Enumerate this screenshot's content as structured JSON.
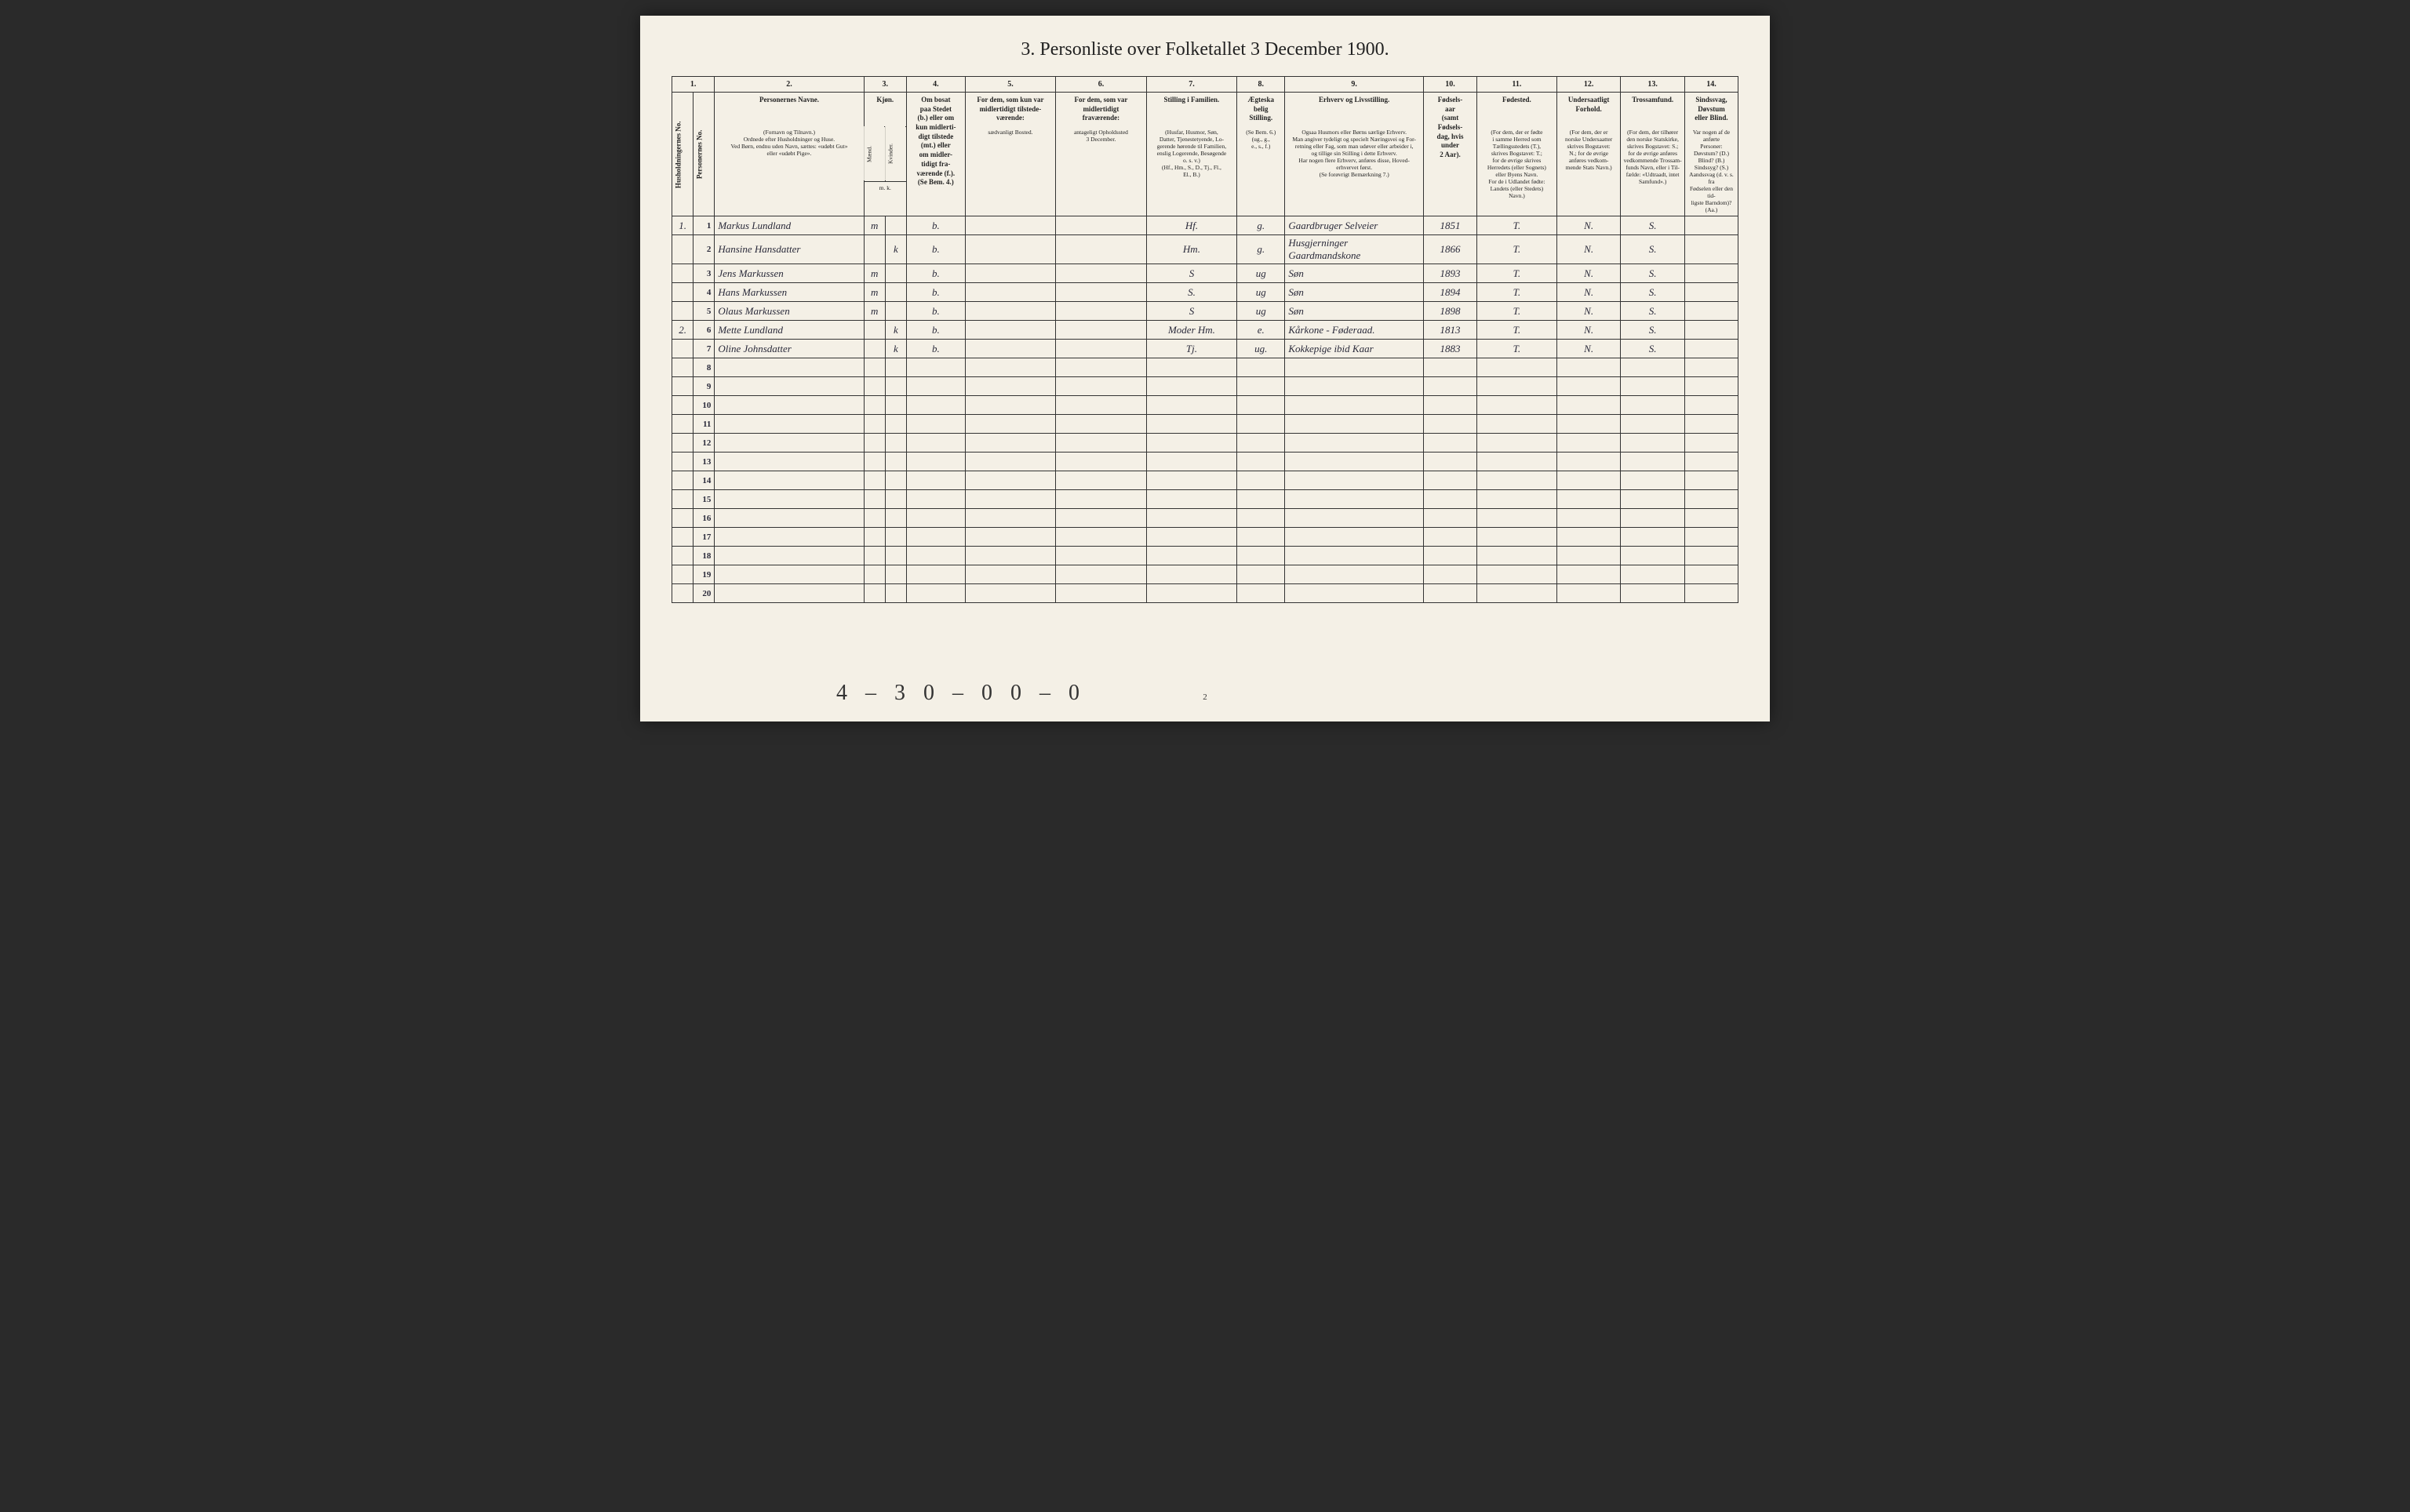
{
  "title": "3. Personliste over Folketallet 3 December 1900.",
  "column_numbers": [
    "1.",
    "2.",
    "3.",
    "4.",
    "5.",
    "6.",
    "7.",
    "8.",
    "9.",
    "10.",
    "11.",
    "12.",
    "13.",
    "14."
  ],
  "column_widths_pct": [
    2,
    2,
    14,
    2,
    2,
    5.5,
    8.5,
    8.5,
    8.5,
    4.5,
    13,
    5,
    7.5,
    6,
    6,
    5
  ],
  "headers": {
    "col1_rot": "Husholdningernes No.",
    "col1b_rot": "Personernes No.",
    "col2_main": "Personernes Navne.",
    "col2_sub": "(Fornavn og Tilnavn.)\nOrdnede efter Husholdninger og Huse.\nVed Børn, endnu uden Navn, sættes: «udøbt Gut»\neller «udøbt Pige».",
    "col3_main": "Kjøn.",
    "col3_sub_m": "Mænd.",
    "col3_sub_k": "Kvinder.",
    "col3_foot": "m.  k.",
    "col4_main": "Om bosat\npaa Stedet\n(b.) eller om\nkun midlerti-\ndigt tilstede\n(mt.) eller\nom midler-\ntidigt fra-\nværende (f.).\n(Se Bem. 4.)",
    "col5_main": "For dem, som kun var\nmidlertidigt tilstede-\nværende:",
    "col5_sub": "sædvanligt Bosted.",
    "col6_main": "For dem, som var\nmidlertidigt\nfraværende:",
    "col6_sub": "antageligt Opholdssted\n3 December.",
    "col7_main": "Stilling i Familien.",
    "col7_sub": "(Husfar, Husmor, Søn,\nDatter, Tjenestetyende, Lo-\ngerende hørende til Familien,\nenslig Logerende, Besøgende\no. s. v.)\n(Hf., Hm., S., D., Tj., Fl.,\nEl., B.)",
    "col8_main": "Ægteska\nbelig\nStilling.",
    "col8_sub": "(Se Bem. 6.)\n(ug., g.,\ne., s., f.)",
    "col9_main": "Erhverv og Livsstilling.",
    "col9_sub": "Ogsaa Husmors eller Børns særlige Erhverv.\nMan angiver tydeligt og specielt Næringsvei og For-\nretning eller Fag, som man udøver eller arbeider i,\nog tillige sin Stilling i dette Erhverv.\nHar nogen flere Erhverv, anføres disse, Hoved-\nerhvervet først.\n(Se forøvrigt Bemærkning 7.)",
    "col10_main": "Fødsels-\naar\n(samt\nFødsels-\ndag, hvis\nunder\n2 Aar).",
    "col11_main": "Fødested.",
    "col11_sub": "(For dem, der er fødte\ni samme Herred som\nTællingsstedets (T.),\nskrives Bogstavet: T.;\nfor de øvrige skrives\nHerredets (eller Sognets)\neller Byens Navn.\nFor de i Udlandet fødte:\nLandets (eller Stedets)\nNavn.)",
    "col12_main": "Undersaatligt\nForhold.",
    "col12_sub": "(For dem, der er\nnorske Undersaatter\nskrives Bogstavet:\nN.; for de øvrige\nanføres vedkom-\nmende Stats Navn.)",
    "col13_main": "Trossamfund.",
    "col13_sub": "(For dem, der tilhører\nden norske Statskirke,\nskrives Bogstavet: S.;\nfor de øvrige anføres\nvedkommende Trossam-\nfunds Navn, eller i Til-\nfælde: «Udtraadt, intet\nSamfund».)",
    "col14_main": "Sindssvag, Døvstum\neller Blind.",
    "col14_sub": "Var nogen af de anførte\nPersoner:\nDøvstum? (D.)\nBlind? (B.)\nSindssyg? (S.)\nAandssvag (d. v. s. fra\nFødselen eller den tid-\nligste Barndom)? (Aa.)"
  },
  "rows": [
    {
      "hh": "1.",
      "pn": "1",
      "name": "Markus Lundland",
      "m": "m",
      "k": "",
      "b": "b.",
      "c5": "",
      "c6": "",
      "fam": "Hf.",
      "eg": "g.",
      "erhv": "Gaardbruger Selveier",
      "aar": "1851",
      "fst": "T.",
      "und": "N.",
      "tro": "S.",
      "c14": ""
    },
    {
      "hh": "",
      "pn": "2",
      "name": "Hansine Hansdatter",
      "m": "",
      "k": "k",
      "b": "b.",
      "c5": "",
      "c6": "",
      "fam": "Hm.",
      "eg": "g.",
      "erhv": "Husgjerninger Gaardmandskone",
      "aar": "1866",
      "fst": "T.",
      "und": "N.",
      "tro": "S.",
      "c14": ""
    },
    {
      "hh": "",
      "pn": "3",
      "name": "Jens Markussen",
      "m": "m",
      "k": "",
      "b": "b.",
      "c5": "",
      "c6": "",
      "fam": "S",
      "eg": "ug",
      "erhv": "Søn",
      "aar": "1893",
      "fst": "T.",
      "und": "N.",
      "tro": "S.",
      "c14": ""
    },
    {
      "hh": "",
      "pn": "4",
      "name": "Hans Markussen",
      "m": "m",
      "k": "",
      "b": "b.",
      "c5": "",
      "c6": "",
      "fam": "S.",
      "eg": "ug",
      "erhv": "Søn",
      "aar": "1894",
      "fst": "T.",
      "und": "N.",
      "tro": "S.",
      "c14": ""
    },
    {
      "hh": "",
      "pn": "5",
      "name": "Olaus Markussen",
      "m": "m",
      "k": "",
      "b": "b.",
      "c5": "",
      "c6": "",
      "fam": "S",
      "eg": "ug",
      "erhv": "Søn",
      "aar": "1898",
      "fst": "T.",
      "und": "N.",
      "tro": "S.",
      "c14": ""
    },
    {
      "hh": "2.",
      "pn": "6",
      "name": "Mette Lundland",
      "m": "",
      "k": "k",
      "b": "b.",
      "c5": "",
      "c6": "",
      "fam": "Moder Hm.",
      "eg": "e.",
      "erhv": "Kårkone - Føderaad.",
      "aar": "1813",
      "fst": "T.",
      "und": "N.",
      "tro": "S.",
      "c14": ""
    },
    {
      "hh": "",
      "pn": "7",
      "name": "Oline Johnsdatter",
      "m": "",
      "k": "k",
      "b": "b.",
      "c5": "",
      "c6": "",
      "fam": "Tj.",
      "eg": "ug.",
      "erhv": "Kokkepige ibid Kaar",
      "aar": "1883",
      "fst": "T.",
      "und": "N.",
      "tro": "S.",
      "c14": ""
    }
  ],
  "empty_row_count": 13,
  "footer_mark": "4 – 3 0 – 0 0 – 0",
  "page_number": "2",
  "colors": {
    "paper": "#f4f0e6",
    "border": "#333333",
    "text": "#222222",
    "handwriting": "#2a2a3a",
    "background": "#2a2a2a"
  },
  "typography": {
    "title_fontsize": 24,
    "header_fontsize": 9,
    "subheader_fontsize": 7.5,
    "body_fontsize": 13,
    "rownum_fontsize": 11
  }
}
